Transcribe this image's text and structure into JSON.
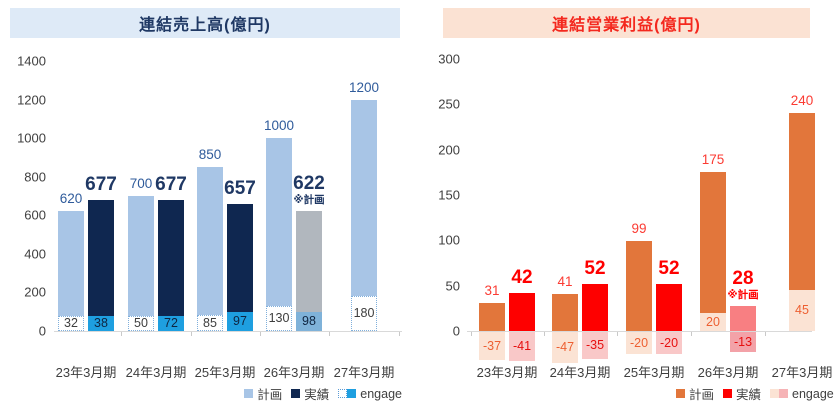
{
  "chart_data": [
    {
      "id": "sales",
      "type": "bar",
      "title": "連結売上高(億円)",
      "ylim": [
        0,
        1400
      ],
      "y_ticks": [
        1400,
        1200,
        1000,
        800,
        600,
        400,
        200,
        0
      ],
      "categories": [
        "23年3月期",
        "24年3月期",
        "25年3月期",
        "26年3月期",
        "27年3月期"
      ],
      "legend": [
        "計画",
        "実績",
        "engage"
      ],
      "series": [
        {
          "name": "計画",
          "values": [
            620,
            700,
            850,
            1000,
            1200
          ]
        },
        {
          "name": "実績",
          "values": [
            677,
            677,
            657,
            622,
            null
          ],
          "notes": [
            null,
            null,
            null,
            "※計画",
            null
          ]
        },
        {
          "name": "engage",
          "plan_values": [
            32,
            50,
            85,
            130,
            180
          ],
          "actual_values": [
            38,
            72,
            97,
            98,
            null
          ]
        }
      ],
      "colors": {
        "title_bg": "#DEEAF7",
        "title_text": "#1F3864",
        "plan": "#A8C5E6",
        "actual": "#0F2750",
        "forecast": "#B1B7BE",
        "engage_plan_bg": "#FFFFFF",
        "engage_plan_border": "#7FAFDC",
        "engage_actual_bg": "#1E9FE0",
        "engage_forecast_bg": "#7FB2D9",
        "plan_label": "#2F5B9B",
        "actual_label": "#1F3864",
        "engage_label_plan": "#3D3D3D",
        "engage_label_actual": "#0E2440",
        "legend_engage_sw1_bg": "#FFFFFF",
        "legend_engage_sw1_border": "#5B9BD5",
        "legend_engage_sw2_bg": "#1E9FE0",
        "axis": "#D9D9D9"
      }
    },
    {
      "id": "profit",
      "type": "bar",
      "title": "連結営業利益(億円)",
      "ylim": [
        0,
        300
      ],
      "y_ticks": [
        300,
        250,
        200,
        150,
        100,
        50,
        0
      ],
      "categories": [
        "23年3月期",
        "24年3月期",
        "25年3月期",
        "26年3月期",
        "27年3月期"
      ],
      "legend": [
        "計画",
        "実績",
        "engage"
      ],
      "series": [
        {
          "name": "計画",
          "values": [
            31,
            41,
            99,
            175,
            240
          ]
        },
        {
          "name": "実績",
          "values": [
            42,
            52,
            52,
            28,
            null
          ],
          "notes": [
            null,
            null,
            null,
            "※計画",
            null
          ]
        },
        {
          "name": "engage",
          "plan_values": [
            -37,
            -47,
            -20,
            20,
            45
          ],
          "actual_values": [
            -41,
            -35,
            -20,
            -13,
            null
          ]
        }
      ],
      "colors": {
        "title_bg": "#FBE2D3",
        "title_text": "#F4281E",
        "plan": "#E2763B",
        "actual": "#FE0000",
        "forecast": "#F87F82",
        "engage_plan_bg": "#FBE3D4",
        "engage_plan_border": null,
        "engage_actual_bg": "#F9C8C8",
        "engage_forecast_bg": "#F3A2A8",
        "plan_label": "#FB3B33",
        "actual_label": "#FF0000",
        "engage_label_plan": "#ED5F31",
        "engage_label_actual": "#E60F0F",
        "legend_engage_sw1_bg": "#FBE3D4",
        "legend_engage_sw1_border": null,
        "legend_engage_sw2_bg": "#F6B3B6",
        "axis": "#D9D9D9"
      }
    }
  ]
}
